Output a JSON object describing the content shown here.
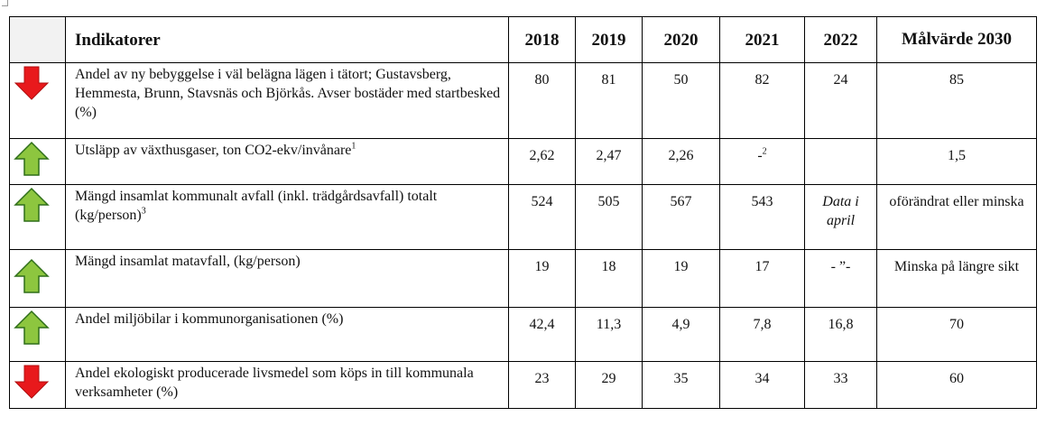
{
  "table": {
    "header": [
      "Indikatorer",
      "2018",
      "2019",
      "2020",
      "2021",
      "2022",
      "Målvärde 2030"
    ],
    "rows": [
      {
        "label": "Andel av ny bebyggelse i väl belägna lägen i tätort; Gustavsberg, Hemmesta, Brunn, Stavsnäs och Björkås. Avser bostäder med startbesked (%)",
        "cells": [
          "80",
          "81",
          "50",
          "82",
          "24",
          "85"
        ]
      },
      {
        "label": "Utsläpp av växthusgaser, ton CO2-ekv/invånare",
        "label_note": "1",
        "cells": [
          "2,62",
          "2,47",
          "2,26",
          {
            "text": "-",
            "note": "2"
          },
          null,
          "1,5"
        ]
      },
      {
        "label": "Mängd insamlat kommunalt avfall (inkl. trädgårdsavfall) totalt (kg/person)",
        "label_note": "3",
        "cells": [
          "524",
          "505",
          "567",
          "543",
          {
            "text": "Data i april",
            "italic": true
          },
          "oförändrat eller minska"
        ]
      },
      {
        "label": "Mängd insamlat matavfall, (kg/person)",
        "cells": [
          "19",
          "18",
          "19",
          "17",
          "- ”-",
          "Minska på längre sikt"
        ]
      },
      {
        "label": "Andel miljöbilar i kommunorganisationen (%)",
        "cells": [
          "42,4",
          "11,3",
          "4,9",
          "7,8",
          "16,8",
          "70"
        ]
      },
      {
        "label": "Andel ekologiskt producerade livsmedel som köps in till kommunala verksamheter (%)",
        "cells": [
          "23",
          "29",
          "35",
          "34",
          "33",
          "60"
        ]
      }
    ]
  }
}
